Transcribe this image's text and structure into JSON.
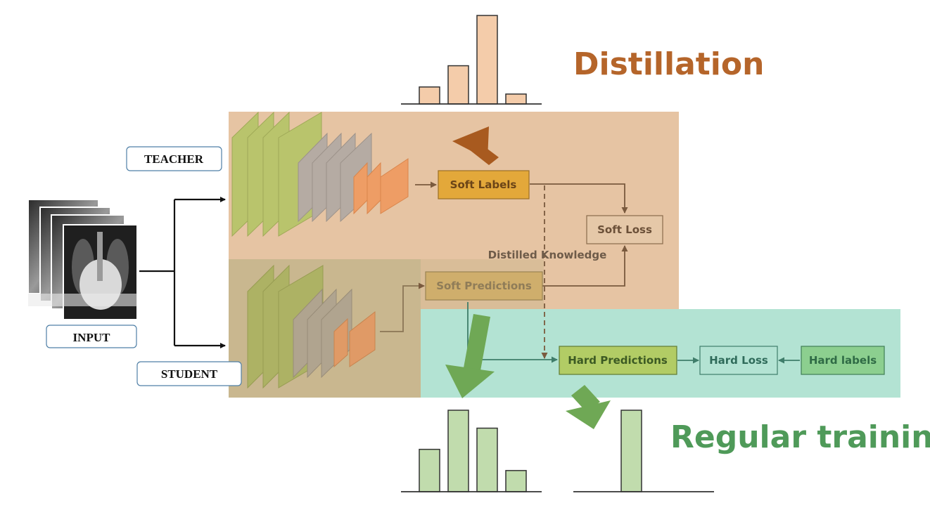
{
  "labels": {
    "teacher": "TEACHER",
    "student": "STUDENT",
    "input": "INPUT"
  },
  "headings": {
    "distillation": "Distillation",
    "regular_training": "Regular training"
  },
  "boxes": {
    "soft_labels": "Soft Labels",
    "soft_loss": "Soft Loss",
    "soft_predictions": "Soft Predictions",
    "hard_predictions": "Hard Predictions",
    "hard_loss": "Hard Loss",
    "hard_labels": "Hard labels"
  },
  "annotations": {
    "distilled_knowledge": "Distilled Knowledge"
  },
  "chart_data": [
    {
      "type": "bar",
      "values": [
        2.4,
        5.4,
        12.5,
        1.4
      ],
      "ylim": [
        0,
        12.5
      ]
    },
    {
      "type": "bar",
      "values": [
        2.6,
        5.0,
        3.9,
        1.3
      ],
      "ylim": [
        0,
        5.0
      ]
    },
    {
      "type": "bar",
      "values": [
        1
      ],
      "ylim": [
        0,
        1
      ]
    }
  ],
  "colors": {
    "distillation_text": "#b5652a",
    "regular_text": "#4f9a59",
    "teacher_region": "#e6c4a3",
    "student_region": "#c9b78f",
    "hard_region": "#b3e3d3",
    "orange_bar": "#f4ccaa",
    "green_bar": "#c1dcad",
    "green_block": "#b9c46c",
    "gray_block": "#b5aba3",
    "orange_block": "#ee9d65",
    "soft_labels_fill": "#e3a83a",
    "hard_pred_fill": "#b2cc65",
    "hard_labels_fill": "#8ccf8f",
    "brown_arrow": "#a85a1f",
    "green_arrow": "#6fa855"
  },
  "icons": {
    "input_images": "xray-stack-icon",
    "distillation_arrow": "arrow-up-right-icon",
    "regular_arrow": "arrow-down-icon"
  }
}
